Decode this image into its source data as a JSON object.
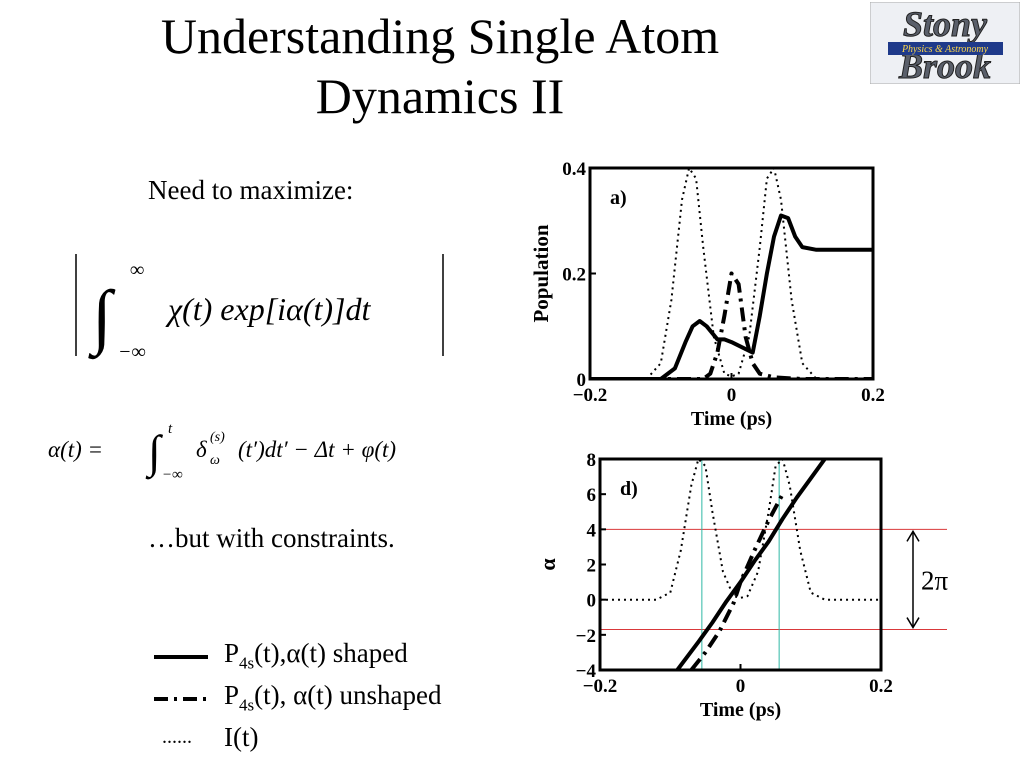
{
  "slide": {
    "title_line1": "Understanding Single Atom",
    "title_line2": "Dynamics II",
    "logo": {
      "line1": "Stony",
      "line2": "Brook",
      "subtitle": "Physics & Astronomy"
    },
    "need_text": "Need to maximize:",
    "formula1": {
      "lower": "−∞",
      "upper": "∞",
      "body": "χ(t) exp[iα(t)]dt"
    },
    "formula2": {
      "lhs": "α(t) =",
      "upper": "t",
      "lower": "−∞",
      "delta": "δ",
      "delta_sub": "ω",
      "delta_sup": "(s)",
      "rest": "(t′)dt′ − Δt + φ(t)"
    },
    "constraints_text": "…but with constraints."
  },
  "legend": [
    {
      "label_main": "P",
      "label_sub": "4s",
      "label_rest": "(t),α(t) shaped",
      "style": "solid"
    },
    {
      "label_main": "P",
      "label_sub": "4s",
      "label_rest": "(t), α(t) unshaped",
      "style": "dashdot"
    },
    {
      "label_main": "I(t)",
      "label_sub": "",
      "label_rest": "",
      "style": "dotted",
      "marker_text": "......"
    }
  ],
  "chart_data": [
    {
      "type": "line",
      "panel_label": "a)",
      "xlabel": "Time (ps)",
      "ylabel": "Population",
      "xlim": [
        -0.2,
        0.2
      ],
      "ylim": [
        0,
        0.4
      ],
      "xticks": [
        "−0.2",
        "0",
        "0.2"
      ],
      "yticks": [
        "0",
        "0.2",
        "0.4"
      ],
      "series": [
        {
          "style": "solid",
          "x": [
            -0.2,
            -0.1,
            -0.08,
            -0.065,
            -0.055,
            -0.045,
            -0.035,
            -0.02,
            -0.01,
            0,
            0.015,
            0.03,
            0.04,
            0.05,
            0.06,
            0.07,
            0.08,
            0.09,
            0.1,
            0.12,
            0.15,
            0.2
          ],
          "y": [
            0,
            0,
            0.02,
            0.07,
            0.1,
            0.11,
            0.1,
            0.075,
            0.075,
            0.07,
            0.06,
            0.05,
            0.12,
            0.2,
            0.27,
            0.31,
            0.305,
            0.27,
            0.25,
            0.245,
            0.245,
            0.245
          ]
        },
        {
          "style": "dashdot",
          "x": [
            -0.2,
            -0.04,
            -0.03,
            -0.02,
            -0.01,
            0,
            0.01,
            0.02,
            0.03,
            0.04,
            0.06,
            0.1,
            0.2
          ],
          "y": [
            0,
            0,
            0.01,
            0.05,
            0.12,
            0.2,
            0.18,
            0.08,
            0.03,
            0.01,
            0.003,
            0,
            0
          ]
        },
        {
          "style": "dotted",
          "x": [
            -0.12,
            -0.1,
            -0.085,
            -0.07,
            -0.06,
            -0.05,
            -0.04,
            -0.025,
            -0.01,
            0,
            0.01,
            0.025,
            0.04,
            0.05,
            0.06,
            0.07,
            0.085,
            0.1,
            0.12
          ],
          "y": [
            0,
            0.03,
            0.15,
            0.34,
            0.4,
            0.38,
            0.25,
            0.08,
            0.01,
            0.005,
            0.01,
            0.08,
            0.25,
            0.38,
            0.4,
            0.34,
            0.15,
            0.03,
            0
          ]
        }
      ]
    },
    {
      "type": "line",
      "panel_label": "d)",
      "xlabel": "Time (ps)",
      "ylabel": "α",
      "xlim": [
        -0.2,
        0.2
      ],
      "ylim": [
        -4,
        8
      ],
      "xticks": [
        "−0.2",
        "0",
        "0.2"
      ],
      "yticks": [
        "−4",
        "−2",
        "0",
        "2",
        "4",
        "6",
        "8"
      ],
      "hlines": [
        4,
        -1.7
      ],
      "vlines": [
        -0.055,
        0.055
      ],
      "annotation": "2π",
      "series": [
        {
          "style": "solid",
          "x": [
            -0.09,
            -0.06,
            -0.04,
            -0.02,
            0,
            0.02,
            0.04,
            0.06,
            0.08,
            0.1,
            0.12
          ],
          "y": [
            -4,
            -2.4,
            -1.3,
            -0.1,
            1,
            2.2,
            3.3,
            4.6,
            5.8,
            6.9,
            8
          ]
        },
        {
          "style": "dashdot",
          "x": [
            -0.07,
            -0.05,
            -0.03,
            -0.01,
            0,
            0.02,
            0.04,
            0.06
          ],
          "y": [
            -4,
            -3,
            -1.8,
            -0.2,
            1,
            2.8,
            4.5,
            6
          ]
        },
        {
          "style": "dotted",
          "x": [
            -0.2,
            -0.12,
            -0.1,
            -0.085,
            -0.07,
            -0.06,
            -0.05,
            -0.04,
            -0.025,
            -0.01,
            0,
            0.01,
            0.025,
            0.04,
            0.05,
            0.06,
            0.07,
            0.085,
            0.1,
            0.12,
            0.2
          ],
          "y": [
            0,
            0,
            0.4,
            2.8,
            6.5,
            8,
            7.6,
            5,
            1.6,
            0.2,
            0.1,
            0.2,
            1.6,
            5,
            7.6,
            8,
            6.5,
            2.8,
            0.4,
            0,
            0
          ]
        }
      ]
    }
  ]
}
